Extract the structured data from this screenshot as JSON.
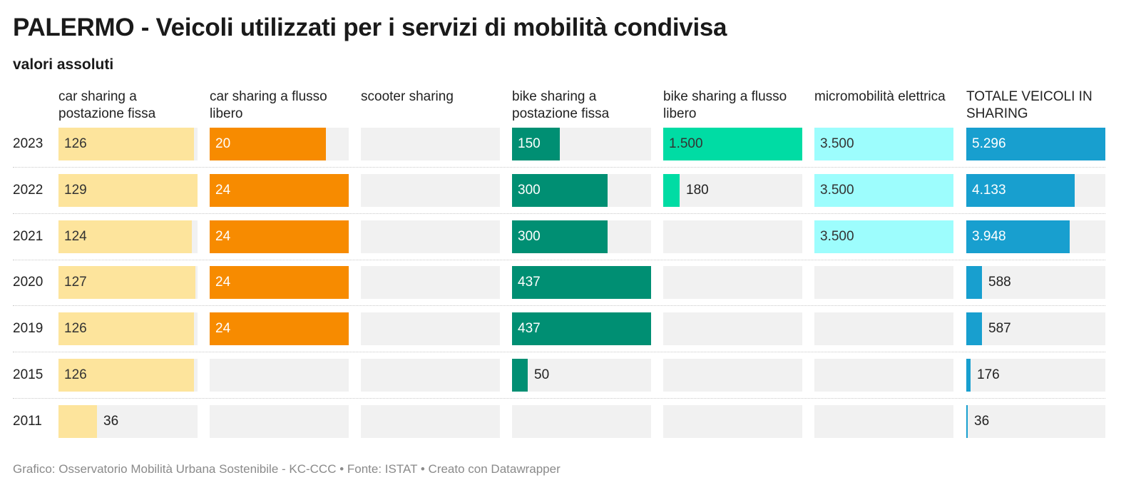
{
  "title": "PALERMO - Veicoli utilizzati per i servizi di mobilità condivisa",
  "subtitle": "valori assoluti",
  "footer": "Grafico: Osservatorio Mobilità Urbana Sostenibile - KC-CCC • Fonte: ISTAT • Creato con Datawrapper",
  "chart_data": {
    "type": "bar",
    "orientation": "horizontal",
    "layout": "small-multiples-table",
    "categories": [
      "2023",
      "2022",
      "2021",
      "2020",
      "2019",
      "2015",
      "2011"
    ],
    "series": [
      {
        "name": "car sharing a postazione fissa",
        "color": "#fde49c",
        "label_color": "#333333",
        "values": [
          126,
          129,
          124,
          127,
          126,
          126,
          36
        ],
        "labels": [
          "126",
          "129",
          "124",
          "127",
          "126",
          "126",
          "36"
        ]
      },
      {
        "name": "car sharing a flusso libero",
        "color": "#f78b00",
        "label_color": "#ffffff",
        "values": [
          20,
          24,
          24,
          24,
          24,
          null,
          null
        ],
        "labels": [
          "20",
          "24",
          "24",
          "24",
          "24",
          "",
          ""
        ]
      },
      {
        "name": "scooter sharing",
        "color": "#cccccc",
        "label_color": "#333333",
        "values": [
          null,
          null,
          null,
          null,
          null,
          null,
          null
        ],
        "labels": [
          "",
          "",
          "",
          "",
          "",
          "",
          ""
        ]
      },
      {
        "name": "bike sharing a postazione fissa",
        "color": "#008f73",
        "label_color": "#ffffff",
        "values": [
          150,
          300,
          300,
          437,
          437,
          50,
          null
        ],
        "labels": [
          "150",
          "300",
          "300",
          "437",
          "437",
          "50",
          ""
        ]
      },
      {
        "name": "bike sharing a flusso libero",
        "color": "#00dca4",
        "label_color": "#333333",
        "values": [
          1500,
          180,
          null,
          null,
          null,
          null,
          null
        ],
        "labels": [
          "1.500",
          "180",
          "",
          "",
          "",
          "",
          ""
        ]
      },
      {
        "name": "micromobilità elettrica",
        "color": "#9dfdfd",
        "label_color": "#333333",
        "values": [
          3500,
          3500,
          3500,
          null,
          null,
          null,
          null
        ],
        "labels": [
          "3.500",
          "3.500",
          "3.500",
          "",
          "",
          "",
          ""
        ]
      },
      {
        "name": "TOTALE VEICOLI IN SHARING",
        "color": "#189fcf",
        "label_color": "#ffffff",
        "values": [
          5296,
          4133,
          3948,
          588,
          587,
          176,
          36
        ],
        "labels": [
          "5.296",
          "4.133",
          "3.948",
          "588",
          "587",
          "176",
          "36"
        ]
      }
    ],
    "outside_label_color": "#222222",
    "track_color": "#f1f1f1"
  }
}
